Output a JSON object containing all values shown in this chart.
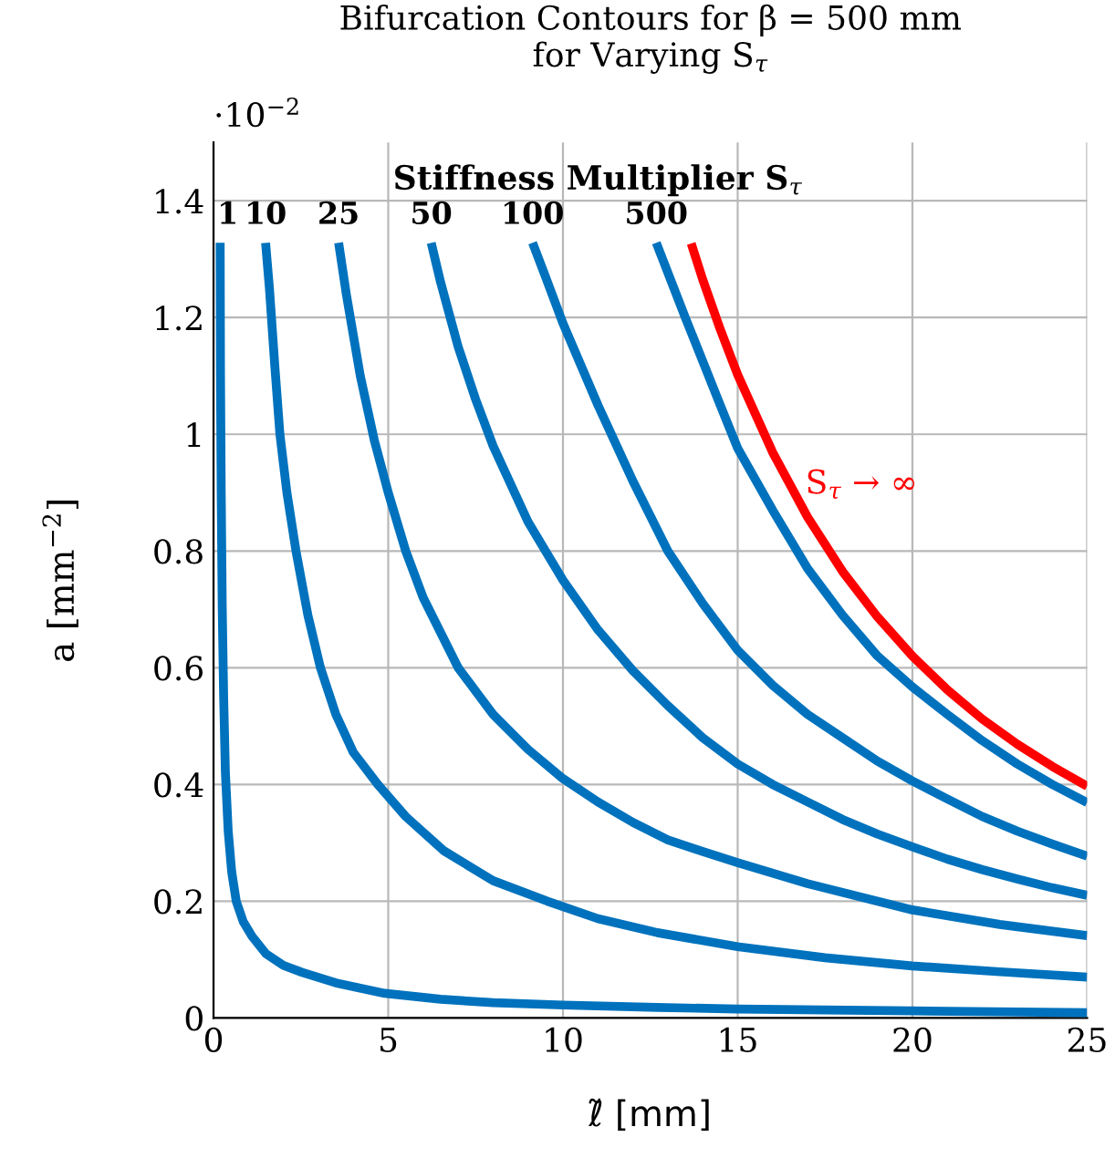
{
  "chart_data": {
    "type": "line",
    "title": "Bifurcation Contours for β = 500 mm\nfor Varying S$_{τ}$",
    "xlabel": "ℓ̃ [mm]",
    "ylabel": "a [mm$^{−2}$]",
    "annotations": [
      "·10$^{−2}$",
      "Stiffness Multiplier S$_{τ}$"
    ],
    "xlim": [
      0,
      25
    ],
    "xticks": [
      0,
      5,
      10,
      15,
      20,
      25
    ],
    "ylim": [
      0,
      1.5
    ],
    "yticks": [
      0,
      0.2,
      0.4,
      0.6,
      0.8,
      1,
      1.2,
      1.4
    ],
    "grid": true,
    "legend": false,
    "marker": "none",
    "line_style": "solid",
    "series": [
      {
        "name": "1",
        "color": "#0072bd",
        "x": [
          0.19,
          0.2,
          0.22,
          0.25,
          0.29,
          0.34,
          0.42,
          0.52,
          0.65,
          0.85,
          1.1,
          1.5,
          2,
          2.53,
          3.5,
          4.9,
          6.5,
          8,
          10,
          12.7,
          15,
          20,
          25
        ],
        "values": [
          1.328,
          1.1,
          0.9,
          0.7,
          0.55,
          0.42,
          0.32,
          0.25,
          0.2,
          0.165,
          0.14,
          0.11,
          0.09,
          0.078,
          0.06,
          0.042,
          0.032,
          0.026,
          0.022,
          0.018,
          0.015,
          0.012,
          0.009
        ]
      },
      {
        "name": "10",
        "color": "#0072bd",
        "x": [
          1.49,
          1.6,
          1.75,
          1.9,
          2.1,
          2.36,
          2.7,
          3.06,
          3.5,
          4,
          4.7,
          5.5,
          6.6,
          8,
          9.55,
          11,
          12.7,
          15,
          17.5,
          20,
          22.5,
          25
        ],
        "values": [
          1.328,
          1.25,
          1.12,
          1.0,
          0.9,
          0.8,
          0.69,
          0.6,
          0.52,
          0.455,
          0.4,
          0.345,
          0.286,
          0.235,
          0.2,
          0.17,
          0.146,
          0.122,
          0.103,
          0.089,
          0.079,
          0.07
        ]
      },
      {
        "name": "25",
        "color": "#0072bd",
        "x": [
          3.58,
          3.8,
          4.2,
          4.6,
          5,
          5.5,
          6,
          7,
          8,
          9,
          10,
          11,
          12,
          13,
          14,
          15,
          17,
          20,
          22.5,
          25
        ],
        "values": [
          1.328,
          1.24,
          1.1,
          0.99,
          0.9,
          0.8,
          0.72,
          0.6,
          0.52,
          0.46,
          0.41,
          0.37,
          0.335,
          0.305,
          0.285,
          0.266,
          0.23,
          0.185,
          0.16,
          0.141
        ]
      },
      {
        "name": "50",
        "color": "#0072bd",
        "x": [
          6.23,
          6.5,
          7,
          7.5,
          8,
          9,
          10,
          11,
          12,
          13,
          14,
          15,
          16,
          17,
          18,
          19,
          20,
          21,
          22,
          23,
          24,
          25
        ],
        "values": [
          1.328,
          1.26,
          1.15,
          1.06,
          0.98,
          0.85,
          0.75,
          0.665,
          0.595,
          0.535,
          0.48,
          0.435,
          0.4,
          0.37,
          0.34,
          0.315,
          0.293,
          0.272,
          0.254,
          0.238,
          0.223,
          0.21
        ]
      },
      {
        "name": "100",
        "color": "#0072bd",
        "x": [
          9.13,
          9.5,
          10,
          11,
          12,
          13,
          14,
          15,
          16,
          17,
          18,
          19,
          20,
          21,
          22,
          23,
          24,
          25
        ],
        "values": [
          1.328,
          1.27,
          1.19,
          1.05,
          0.92,
          0.8,
          0.71,
          0.63,
          0.57,
          0.52,
          0.48,
          0.44,
          0.406,
          0.375,
          0.345,
          0.32,
          0.298,
          0.277
        ]
      },
      {
        "name": "500",
        "color": "#0072bd",
        "x": [
          12.67,
          13.5,
          14.5,
          15,
          16,
          17,
          18,
          19,
          20,
          21,
          22,
          23,
          24,
          25
        ],
        "values": [
          1.328,
          1.2,
          1.05,
          0.976,
          0.87,
          0.77,
          0.69,
          0.62,
          0.567,
          0.52,
          0.475,
          0.435,
          0.4,
          0.369
        ]
      },
      {
        "name": "S$_{τ}$ → ∞",
        "color": "#ff0000",
        "x": [
          13.67,
          14,
          14.5,
          15,
          16,
          17,
          18,
          19,
          20,
          21,
          22,
          23,
          24,
          25
        ],
        "values": [
          1.327,
          1.265,
          1.18,
          1.102,
          0.969,
          0.858,
          0.765,
          0.687,
          0.62,
          0.562,
          0.512,
          0.469,
          0.431,
          0.397
        ]
      }
    ]
  }
}
